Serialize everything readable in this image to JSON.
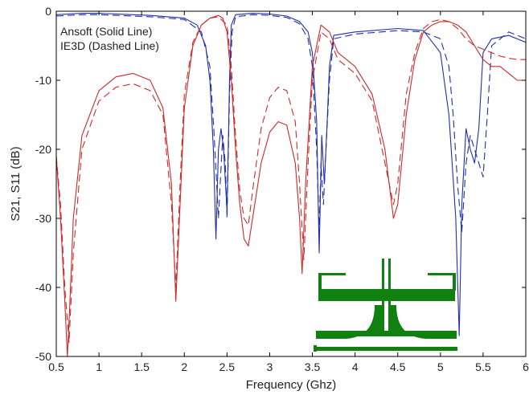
{
  "chart_data": {
    "type": "line",
    "title": "",
    "xlabel": "Frequency (Ghz)",
    "ylabel": "S21, S11 (dB)",
    "xlim": [
      0.5,
      6
    ],
    "ylim": [
      -50,
      0
    ],
    "xticks": [
      "0.5",
      "1",
      "1.5",
      "2",
      "2.5",
      "3",
      "3.5",
      "4",
      "4.5",
      "5",
      "5.5",
      "6"
    ],
    "yticks": [
      "0",
      "-10",
      "-20",
      "-30",
      "-40",
      "-50"
    ],
    "grid": false,
    "legend_text": [
      "Ansoft (Solid Line)",
      "IE3D (Dashed Line)"
    ],
    "legend_placement": "top-left",
    "colors": {
      "s21": "#1f2fa8",
      "s11": "#cc2a2a",
      "inset": "#108010",
      "axis": "#000000"
    },
    "inset_icon": "filter-layout-icon",
    "series": [
      {
        "style": "solid",
        "color_key": "s21",
        "x": [
          0.5,
          0.8,
          1.0,
          1.2,
          1.6,
          2.0,
          2.15,
          2.25,
          2.3,
          2.34,
          2.37,
          2.4,
          2.43,
          2.46,
          2.5,
          2.53,
          2.55,
          2.6,
          2.8,
          3.0,
          3.2,
          3.35,
          3.45,
          3.5,
          3.55,
          3.58,
          3.61,
          3.64,
          3.67,
          3.7,
          3.75,
          4.0,
          4.5,
          4.8,
          5.0,
          5.1,
          5.18,
          5.22,
          5.25,
          5.3,
          5.35,
          5.4,
          5.45,
          5.5,
          5.6,
          5.8,
          6.0
        ],
        "y": [
          -0.5,
          -0.3,
          -0.3,
          -0.4,
          -0.6,
          -1.0,
          -2.0,
          -5,
          -10,
          -20,
          -33,
          -20,
          -17,
          -20,
          -29,
          -10,
          -2,
          -0.5,
          -0.3,
          -0.4,
          -0.7,
          -1.5,
          -3,
          -6,
          -16,
          -35,
          -18,
          -25,
          -17,
          -8,
          -3.5,
          -3.0,
          -2.5,
          -2.8,
          -6,
          -15,
          -30,
          -47,
          -28,
          -17,
          -20,
          -22,
          -17,
          -6,
          -4,
          -3.5,
          -4.5
        ]
      },
      {
        "style": "dashed",
        "color_key": "s21",
        "x": [
          0.5,
          0.8,
          1.0,
          1.2,
          1.6,
          2.0,
          2.2,
          2.3,
          2.35,
          2.4,
          2.42,
          2.45,
          2.48,
          2.5,
          2.53,
          2.56,
          2.6,
          2.8,
          3.0,
          3.2,
          3.35,
          3.45,
          3.5,
          3.55,
          3.58,
          3.6,
          3.63,
          3.66,
          3.7,
          3.75,
          4.0,
          4.5,
          4.8,
          5.0,
          5.1,
          5.15,
          5.2,
          5.25,
          5.3,
          5.35,
          5.4,
          5.45,
          5.5,
          5.55,
          5.6,
          5.8,
          6.0
        ],
        "y": [
          -0.7,
          -0.5,
          -0.5,
          -0.6,
          -0.8,
          -1.2,
          -3,
          -8,
          -18,
          -30,
          -25,
          -18,
          -22,
          -30,
          -12,
          -3,
          -0.8,
          -0.5,
          -0.6,
          -0.9,
          -1.8,
          -4,
          -8,
          -20,
          -32,
          -22,
          -28,
          -20,
          -10,
          -4,
          -3.3,
          -2.8,
          -3,
          -4,
          -8,
          -15,
          -25,
          -32,
          -22,
          -18,
          -20,
          -22,
          -24,
          -15,
          -5,
          -3,
          -4
        ]
      },
      {
        "style": "solid",
        "color_key": "s11",
        "x": [
          0.5,
          0.55,
          0.6,
          0.63,
          0.66,
          0.7,
          0.8,
          1.0,
          1.2,
          1.4,
          1.6,
          1.75,
          1.85,
          1.9,
          1.95,
          2.0,
          2.1,
          2.2,
          2.3,
          2.4,
          2.45,
          2.5,
          2.55,
          2.6,
          2.65,
          2.7,
          2.75,
          2.8,
          2.9,
          3.0,
          3.1,
          3.2,
          3.3,
          3.35,
          3.38,
          3.42,
          3.5,
          3.6,
          3.7,
          3.8,
          4.0,
          4.2,
          4.35,
          4.45,
          4.5,
          4.6,
          4.7,
          4.8,
          4.9,
          5.0,
          5.1,
          5.2,
          5.3,
          5.4,
          5.5,
          5.6,
          5.7,
          5.8,
          5.9,
          6.0
        ],
        "y": [
          -21,
          -30,
          -42,
          -50,
          -42,
          -30,
          -18,
          -11.5,
          -9.5,
          -9,
          -10,
          -14,
          -25,
          -42,
          -28,
          -14,
          -5,
          -2,
          -1,
          -0.6,
          -1,
          -3,
          -10,
          -20,
          -28,
          -33,
          -34,
          -30,
          -22,
          -17.5,
          -16,
          -16.5,
          -22,
          -30,
          -38,
          -25,
          -8,
          -2,
          -3,
          -6,
          -8,
          -12,
          -20,
          -30,
          -28,
          -15,
          -7,
          -3,
          -2,
          -1.5,
          -1.5,
          -2,
          -3,
          -5,
          -7,
          -8,
          -8,
          -9,
          -10,
          -10
        ]
      },
      {
        "style": "dashed",
        "color_key": "s11",
        "x": [
          0.5,
          0.55,
          0.6,
          0.65,
          0.7,
          0.8,
          1.0,
          1.2,
          1.4,
          1.6,
          1.75,
          1.85,
          1.9,
          1.95,
          2.0,
          2.1,
          2.2,
          2.3,
          2.4,
          2.5,
          2.55,
          2.6,
          2.65,
          2.7,
          2.75,
          2.8,
          2.9,
          3.0,
          3.1,
          3.2,
          3.3,
          3.35,
          3.4,
          3.45,
          3.5,
          3.6,
          3.7,
          3.8,
          4.0,
          4.2,
          4.35,
          4.45,
          4.5,
          4.6,
          4.7,
          4.8,
          4.9,
          5.0,
          5.1,
          5.2,
          5.3,
          5.4,
          5.5,
          5.6,
          5.7,
          5.8,
          5.9,
          6.0
        ],
        "y": [
          -21,
          -28,
          -40,
          -48,
          -35,
          -20,
          -13,
          -11,
          -10.5,
          -11.5,
          -15,
          -28,
          -40,
          -25,
          -12,
          -4.5,
          -2,
          -1,
          -0.8,
          -2,
          -8,
          -18,
          -26,
          -30,
          -31,
          -26,
          -17,
          -12.5,
          -11,
          -11.5,
          -16,
          -25,
          -36,
          -22,
          -10,
          -3,
          -4,
          -7,
          -9,
          -13,
          -22,
          -28,
          -25,
          -12,
          -6,
          -2.5,
          -1.5,
          -1.2,
          -1.5,
          -2.5,
          -4,
          -5,
          -5.5,
          -6,
          -6.5,
          -6.8,
          -7,
          -7
        ]
      }
    ]
  }
}
